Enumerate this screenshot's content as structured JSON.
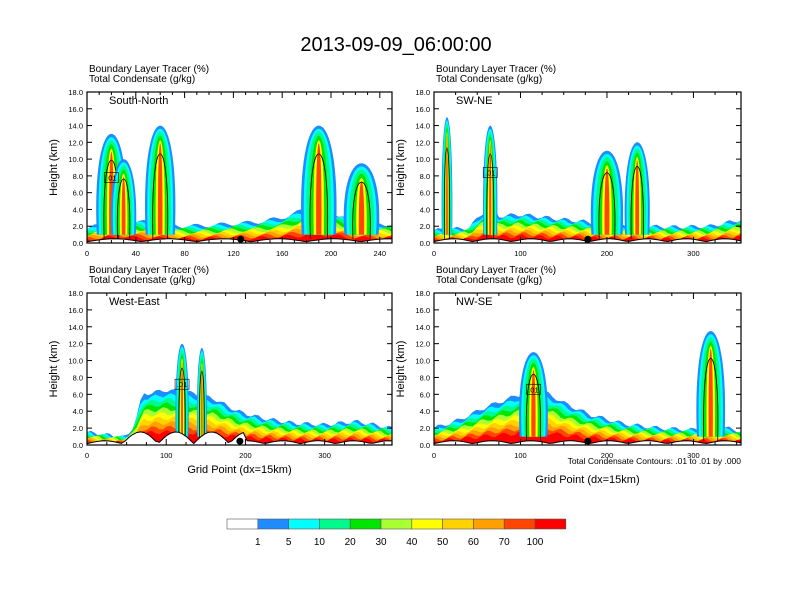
{
  "title": "2013-09-09_06:00:00",
  "chart_data": {
    "type": "heatmap",
    "title": "2013-09-09_06:00:00",
    "colorbar": {
      "levels": [
        "1",
        "5",
        "10",
        "20",
        "30",
        "40",
        "50",
        "60",
        "70",
        "100"
      ],
      "colors": [
        "#ffffff",
        "#1e8cff",
        "#00ffff",
        "#00fa8c",
        "#00e600",
        "#aaff32",
        "#ffff00",
        "#ffd200",
        "#ffa000",
        "#ff4600",
        "#ff0000"
      ]
    },
    "note": "Total Condensate Contours: .01 to .01 by .000",
    "contour_label": ".01",
    "panels": [
      {
        "id": "south-north",
        "title_line1": "Boundary Layer Tracer   (%)",
        "title_line2": "Total Condensate   (g/kg)",
        "label": "South-North",
        "ylabel": "Height (km)",
        "xlabel": "",
        "xlim": [
          0,
          250
        ],
        "ylim": [
          0,
          18
        ],
        "xticks": [
          0,
          40,
          80,
          120,
          160,
          200,
          240
        ],
        "yticks": [
          "0.0",
          "2.0",
          "4.0",
          "6.0",
          "8.0",
          "10.0",
          "12.0",
          "14.0",
          "16.0",
          "18.0"
        ],
        "marker_x": 126,
        "bl_top": [
          [
            0,
            1.6
          ],
          [
            10,
            2.2
          ],
          [
            20,
            2.8
          ],
          [
            30,
            3.0
          ],
          [
            40,
            2.6
          ],
          [
            60,
            2.3
          ],
          [
            80,
            2.0
          ],
          [
            100,
            2.1
          ],
          [
            120,
            2.3
          ],
          [
            140,
            2.5
          ],
          [
            160,
            3.0
          ],
          [
            175,
            3.8
          ],
          [
            185,
            5.0
          ],
          [
            195,
            4.2
          ],
          [
            205,
            3.4
          ],
          [
            220,
            2.6
          ],
          [
            235,
            2.3
          ],
          [
            250,
            2.2
          ]
        ],
        "plumes": [
          [
            20,
            13.0,
            12
          ],
          [
            60,
            14.0,
            12
          ],
          [
            190,
            14.0,
            14
          ],
          [
            225,
            9.5,
            14
          ],
          [
            30,
            10.0,
            10
          ]
        ]
      },
      {
        "id": "sw-ne",
        "title_line1": "Boundary Layer Tracer   (%)",
        "title_line2": "Total Condensate   (g/kg)",
        "label": "SW-NE",
        "ylabel": "Height (km)",
        "xlabel": "",
        "xlim": [
          0,
          355
        ],
        "ylim": [
          0,
          18
        ],
        "xticks": [
          0,
          100,
          200,
          300
        ],
        "yticks": [
          "0.0",
          "2.0",
          "4.0",
          "6.0",
          "8.0",
          "10.0",
          "12.0",
          "14.0",
          "16.0",
          "18.0"
        ],
        "marker_x": 178,
        "bl_top": [
          [
            0,
            1.5
          ],
          [
            40,
            1.8
          ],
          [
            65,
            4.5
          ],
          [
            75,
            3.2
          ],
          [
            100,
            3.4
          ],
          [
            140,
            2.9
          ],
          [
            170,
            2.6
          ],
          [
            200,
            2.2
          ],
          [
            240,
            2.0
          ],
          [
            280,
            1.9
          ],
          [
            320,
            2.0
          ],
          [
            355,
            2.8
          ]
        ],
        "plumes": [
          [
            65,
            14.0,
            8
          ],
          [
            200,
            11.0,
            18
          ],
          [
            235,
            12.0,
            14
          ],
          [
            15,
            15.0,
            6
          ]
        ]
      },
      {
        "id": "west-east",
        "title_line1": "Boundary Layer Tracer   (%)",
        "title_line2": "Total Condensate   (g/kg)",
        "label": "West-East",
        "ylabel": "Height (km)",
        "xlabel": "Grid Point (dx=15km)",
        "xlim": [
          0,
          385
        ],
        "ylim": [
          0,
          18
        ],
        "xticks": [
          0,
          100,
          200,
          300
        ],
        "yticks": [
          "0.0",
          "2.0",
          "4.0",
          "6.0",
          "8.0",
          "10.0",
          "12.0",
          "14.0",
          "16.0",
          "18.0"
        ],
        "marker_x": 193,
        "bl_top": [
          [
            0,
            1.5
          ],
          [
            50,
            0.9
          ],
          [
            60,
            2.5
          ],
          [
            70,
            6.0
          ],
          [
            100,
            6.5
          ],
          [
            130,
            6.2
          ],
          [
            160,
            5.5
          ],
          [
            190,
            4.0
          ],
          [
            220,
            3.2
          ],
          [
            260,
            2.6
          ],
          [
            300,
            2.4
          ],
          [
            340,
            2.8
          ],
          [
            385,
            2.0
          ]
        ],
        "plumes": [
          [
            120,
            12.0,
            8
          ],
          [
            145,
            11.5,
            6
          ]
        ]
      },
      {
        "id": "nw-se",
        "title_line1": "Boundary Layer Tracer   (%)",
        "title_line2": "Total Condensate   (g/kg)",
        "label": "NW-SE",
        "ylabel": "Height (km)",
        "xlabel": "Grid Point (dx=15km)",
        "xlim": [
          0,
          355
        ],
        "ylim": [
          0,
          18
        ],
        "xticks": [
          0,
          100,
          200,
          300
        ],
        "yticks": [
          "0.0",
          "2.0",
          "4.0",
          "6.0",
          "8.0",
          "10.0",
          "12.0",
          "14.0",
          "16.0",
          "18.0"
        ],
        "marker_x": 178,
        "bl_top": [
          [
            0,
            2.0
          ],
          [
            30,
            3.0
          ],
          [
            60,
            4.5
          ],
          [
            100,
            6.0
          ],
          [
            120,
            6.8
          ],
          [
            150,
            5.0
          ],
          [
            180,
            3.6
          ],
          [
            220,
            2.5
          ],
          [
            260,
            2.0
          ],
          [
            300,
            1.8
          ],
          [
            340,
            2.0
          ],
          [
            355,
            1.6
          ]
        ],
        "plumes": [
          [
            115,
            11.0,
            16
          ],
          [
            320,
            13.5,
            16
          ]
        ]
      }
    ]
  }
}
